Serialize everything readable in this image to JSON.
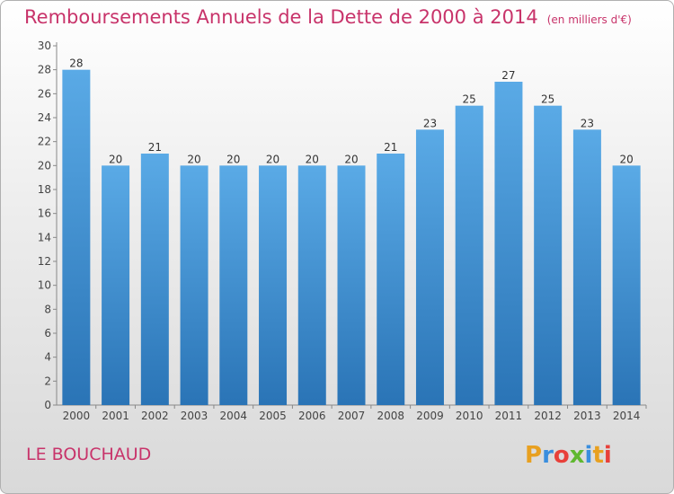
{
  "title": "Remboursements Annuels de la Dette de 2000 à 2014",
  "subtitle": "(en milliers d'€)",
  "commune": "LE BOUCHAUD",
  "logo_text": "Proxiti",
  "colors": {
    "title": "#c8336a",
    "bar_top": "#5aaae6",
    "bar_bottom": "#2a74b6"
  },
  "chart_data": {
    "type": "bar",
    "categories": [
      "2000",
      "2001",
      "2002",
      "2003",
      "2004",
      "2005",
      "2006",
      "2007",
      "2008",
      "2009",
      "2010",
      "2011",
      "2012",
      "2013",
      "2014"
    ],
    "values": [
      28,
      20,
      21,
      20,
      20,
      20,
      20,
      20,
      21,
      23,
      25,
      27,
      25,
      23,
      20
    ],
    "ylim": [
      0,
      30
    ],
    "yticks": [
      0,
      2,
      4,
      6,
      8,
      10,
      12,
      14,
      16,
      18,
      20,
      22,
      24,
      26,
      28,
      30
    ],
    "grid": false,
    "data_labels": true
  }
}
